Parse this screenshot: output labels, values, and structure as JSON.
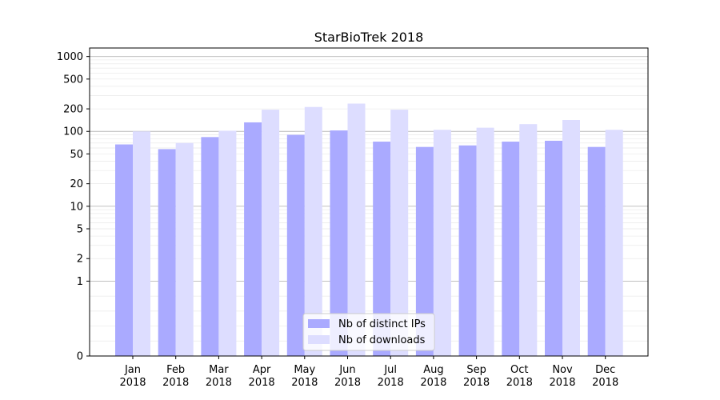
{
  "chart_data": {
    "type": "bar",
    "title": "StarBioTrek 2018",
    "xlabel": "",
    "ylabel": "",
    "y_scale": "symlog",
    "ylim": [
      0,
      1300
    ],
    "y_ticks": [
      0,
      1,
      2,
      5,
      10,
      20,
      50,
      100,
      200,
      500,
      1000
    ],
    "categories": [
      [
        "Jan",
        "2018"
      ],
      [
        "Feb",
        "2018"
      ],
      [
        "Mar",
        "2018"
      ],
      [
        "Apr",
        "2018"
      ],
      [
        "May",
        "2018"
      ],
      [
        "Jun",
        "2018"
      ],
      [
        "Jul",
        "2018"
      ],
      [
        "Aug",
        "2018"
      ],
      [
        "Sep",
        "2018"
      ],
      [
        "Oct",
        "2018"
      ],
      [
        "Nov",
        "2018"
      ],
      [
        "Dec",
        "2018"
      ]
    ],
    "series": [
      {
        "name": "Nb of distinct IPs",
        "color": "#aaaaff",
        "values": [
          67,
          58,
          84,
          132,
          90,
          103,
          73,
          62,
          65,
          73,
          75,
          62
        ]
      },
      {
        "name": "Nb of downloads",
        "color": "#ddddff",
        "values": [
          100,
          70,
          102,
          195,
          212,
          235,
          195,
          105,
          112,
          125,
          142,
          105
        ]
      }
    ],
    "grid": true,
    "legend_position": "bottom-center"
  }
}
